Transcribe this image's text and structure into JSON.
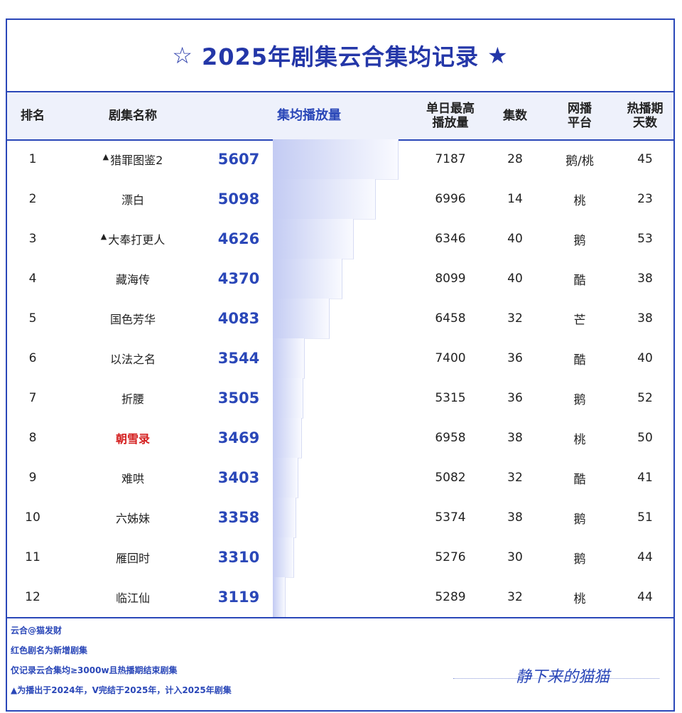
{
  "title": "2025年剧集云合集均记录",
  "title_left_icon": "☆",
  "title_right_icon": "★",
  "headers": {
    "rank": "排名",
    "name": "剧集名称",
    "avg": "集均播放量",
    "peak_1": "单日最高",
    "peak_2": "播放量",
    "episodes": "集数",
    "platform_1": "网播",
    "platform_2": "平台",
    "days_1": "热播期",
    "days_2": "天数"
  },
  "chart_data": {
    "type": "table",
    "value_unit": "w",
    "max_value": 5607,
    "rows": [
      {
        "rank": "1",
        "name": "猎罪图鉴2",
        "marker": "▲",
        "new": false,
        "avg": 5607,
        "peak": "7187",
        "episodes": "28",
        "platform": "鹅/桃",
        "days": "45"
      },
      {
        "rank": "2",
        "name": "漂白",
        "marker": "",
        "new": false,
        "avg": 5098,
        "peak": "6996",
        "episodes": "14",
        "platform": "桃",
        "days": "23"
      },
      {
        "rank": "3",
        "name": "大奉打更人",
        "marker": "▲",
        "new": false,
        "avg": 4626,
        "peak": "6346",
        "episodes": "40",
        "platform": "鹅",
        "days": "53"
      },
      {
        "rank": "4",
        "name": "藏海传",
        "marker": "",
        "new": false,
        "avg": 4370,
        "peak": "8099",
        "episodes": "40",
        "platform": "酷",
        "days": "38"
      },
      {
        "rank": "5",
        "name": "国色芳华",
        "marker": "",
        "new": false,
        "avg": 4083,
        "peak": "6458",
        "episodes": "32",
        "platform": "芒",
        "days": "38"
      },
      {
        "rank": "6",
        "name": "以法之名",
        "marker": "",
        "new": false,
        "avg": 3544,
        "peak": "7400",
        "episodes": "36",
        "platform": "酷",
        "days": "40"
      },
      {
        "rank": "7",
        "name": "折腰",
        "marker": "",
        "new": false,
        "avg": 3505,
        "peak": "5315",
        "episodes": "36",
        "platform": "鹅",
        "days": "52"
      },
      {
        "rank": "8",
        "name": "朝雪录",
        "marker": "",
        "new": true,
        "avg": 3469,
        "peak": "6958",
        "episodes": "38",
        "platform": "桃",
        "days": "50"
      },
      {
        "rank": "9",
        "name": "难哄",
        "marker": "",
        "new": false,
        "avg": 3403,
        "peak": "5082",
        "episodes": "32",
        "platform": "酷",
        "days": "41"
      },
      {
        "rank": "10",
        "name": "六姊妹",
        "marker": "",
        "new": false,
        "avg": 3358,
        "peak": "5374",
        "episodes": "38",
        "platform": "鹅",
        "days": "51"
      },
      {
        "rank": "11",
        "name": "雁回时",
        "marker": "",
        "new": false,
        "avg": 3310,
        "peak": "5276",
        "episodes": "30",
        "platform": "鹅",
        "days": "44"
      },
      {
        "rank": "12",
        "name": "临江仙",
        "marker": "",
        "new": false,
        "avg": 3119,
        "peak": "5289",
        "episodes": "32",
        "platform": "桃",
        "days": "44"
      }
    ]
  },
  "footer": {
    "source": "云合@猫发财",
    "note_red": "红色剧名为新增剧集",
    "note_rule": "仅记录云合集均≥3000w且热播期结束剧集",
    "note_marker": "▲为播出于2024年，V完结于2025年，计入2025年剧集",
    "signature": "静下来的猫猫"
  },
  "colors": {
    "accent": "#2a47b8",
    "new_title": "#d42020",
    "header_bg": "#eef1fb"
  }
}
